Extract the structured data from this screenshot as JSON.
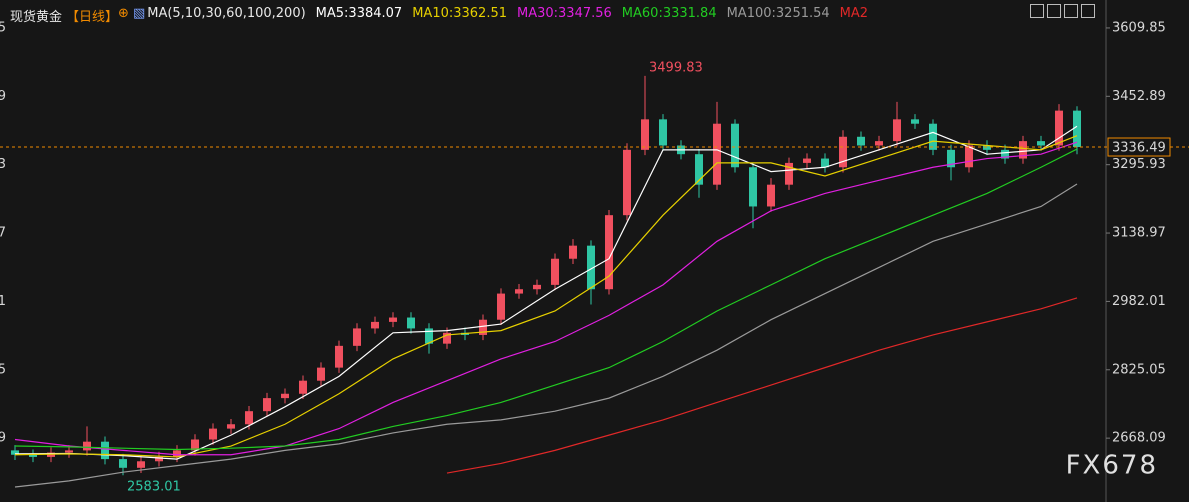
{
  "chart_data": {
    "type": "candlestick",
    "title": "现货黄金",
    "period": "【日线】",
    "indicator": "MA(5,10,30,60,100,200)",
    "watermark": "FX678",
    "up_color": "#f0505f",
    "down_color": "#2fc6a4",
    "open": [
      2640,
      2630,
      2625,
      2635,
      2640,
      2660,
      2620,
      2600,
      2615,
      2625,
      2640,
      2665,
      2690,
      2700,
      2730,
      2760,
      2770,
      2800,
      2830,
      2880,
      2920,
      2935,
      2945,
      2920,
      2885,
      2910,
      2905,
      2940,
      3000,
      3010,
      3020,
      3080,
      3110,
      3010,
      3180,
      3330,
      3400,
      3340,
      3320,
      3250,
      3390,
      3290,
      3200,
      3250,
      3300,
      3310,
      3290,
      3360,
      3340,
      3350,
      3400,
      3390,
      3330,
      3290,
      3340,
      3330,
      3310,
      3350,
      3340,
      3420
    ],
    "high": [
      2652,
      2642,
      2647,
      2652,
      2695,
      2672,
      2632,
      2627,
      2637,
      2652,
      2677,
      2702,
      2712,
      2742,
      2772,
      2782,
      2812,
      2842,
      2892,
      2932,
      2947,
      2957,
      2957,
      2932,
      2922,
      2922,
      2952,
      3012,
      3022,
      3032,
      3092,
      3125,
      3122,
      3192,
      3345,
      3499.83,
      3412,
      3352,
      3332,
      3440,
      3400,
      3300,
      3265,
      3312,
      3322,
      3322,
      3375,
      3372,
      3362,
      3440,
      3412,
      3400,
      3342,
      3352,
      3352,
      3342,
      3362,
      3362,
      3435,
      3430
    ],
    "low": [
      2618,
      2613,
      2613,
      2623,
      2628,
      2608,
      2583.01,
      2588,
      2603,
      2613,
      2628,
      2653,
      2678,
      2688,
      2718,
      2748,
      2758,
      2788,
      2818,
      2868,
      2908,
      2923,
      2908,
      2862,
      2873,
      2893,
      2893,
      2928,
      2988,
      2998,
      3008,
      3068,
      2975,
      2998,
      3168,
      3318,
      3328,
      3308,
      3220,
      3238,
      3278,
      3150,
      3188,
      3238,
      3288,
      3278,
      3278,
      3328,
      3328,
      3338,
      3378,
      3318,
      3260,
      3278,
      3318,
      3298,
      3298,
      3328,
      3328,
      3320
    ],
    "close": [
      2630,
      2625,
      2635,
      2640,
      2660,
      2620,
      2600,
      2615,
      2625,
      2640,
      2665,
      2690,
      2700,
      2730,
      2760,
      2770,
      2800,
      2830,
      2880,
      2920,
      2935,
      2945,
      2920,
      2885,
      2910,
      2905,
      2940,
      3000,
      3010,
      3020,
      3080,
      3110,
      3010,
      3180,
      3330,
      3400,
      3340,
      3320,
      3250,
      3390,
      3290,
      3200,
      3250,
      3300,
      3310,
      3290,
      3360,
      3340,
      3350,
      3400,
      3390,
      3330,
      3290,
      3340,
      3330,
      3310,
      3350,
      3340,
      3420,
      3336.49
    ],
    "series": [
      {
        "name": "MA5:3384.07",
        "color": "#ffffff",
        "x": [
          0,
          3,
          6,
          9,
          12,
          15,
          18,
          21,
          24,
          27,
          30,
          33,
          36,
          39,
          42,
          45,
          48,
          51,
          54,
          57,
          59
        ],
        "values": [
          2632,
          2633,
          2628,
          2620,
          2675,
          2740,
          2810,
          2910,
          2915,
          2930,
          3010,
          3080,
          3330,
          3330,
          3280,
          3290,
          3330,
          3370,
          3320,
          3330,
          3384.07
        ]
      },
      {
        "name": "MA10:3362.51",
        "color": "#e6d000",
        "x": [
          0,
          3,
          6,
          9,
          12,
          15,
          18,
          21,
          24,
          27,
          30,
          33,
          36,
          39,
          42,
          45,
          48,
          51,
          54,
          57,
          59
        ],
        "values": [
          2630,
          2632,
          2630,
          2625,
          2650,
          2700,
          2770,
          2850,
          2905,
          2915,
          2960,
          3040,
          3180,
          3300,
          3300,
          3270,
          3310,
          3350,
          3340,
          3330,
          3362.51
        ]
      },
      {
        "name": "MA30:3347.56",
        "color": "#e020e0",
        "x": [
          0,
          3,
          6,
          9,
          12,
          15,
          18,
          21,
          24,
          27,
          30,
          33,
          36,
          39,
          42,
          45,
          48,
          51,
          54,
          57,
          59
        ],
        "values": [
          2665,
          2650,
          2640,
          2630,
          2630,
          2650,
          2690,
          2750,
          2800,
          2850,
          2890,
          2950,
          3020,
          3120,
          3190,
          3230,
          3260,
          3290,
          3310,
          3320,
          3347.56
        ]
      },
      {
        "name": "MA60:3331.84",
        "color": "#22cc22",
        "x": [
          0,
          3,
          6,
          9,
          12,
          15,
          18,
          21,
          24,
          27,
          30,
          33,
          36,
          39,
          42,
          45,
          48,
          51,
          54,
          57,
          59
        ],
        "values": [
          2650,
          2648,
          2645,
          2642,
          2645,
          2650,
          2665,
          2695,
          2720,
          2750,
          2790,
          2830,
          2890,
          2960,
          3020,
          3080,
          3130,
          3180,
          3230,
          3290,
          3331.84
        ]
      },
      {
        "name": "MA100:3251.54",
        "color": "#9a9a9a",
        "x": [
          0,
          3,
          6,
          9,
          12,
          15,
          18,
          21,
          24,
          27,
          30,
          33,
          36,
          39,
          42,
          45,
          48,
          51,
          54,
          57,
          59
        ],
        "values": [
          2556,
          2570,
          2590,
          2605,
          2620,
          2640,
          2655,
          2680,
          2700,
          2710,
          2730,
          2760,
          2810,
          2870,
          2940,
          3000,
          3060,
          3120,
          3160,
          3200,
          3251.54
        ]
      },
      {
        "name": "MA2",
        "color": "#e02828",
        "x": [
          24,
          27,
          30,
          33,
          36,
          39,
          42,
          45,
          48,
          51,
          54,
          57,
          59
        ],
        "values": [
          2588,
          2610,
          2640,
          2675,
          2710,
          2750,
          2790,
          2830,
          2870,
          2905,
          2935,
          2965,
          2990
        ]
      }
    ],
    "ylim": [
      2521.5,
      3674
    ],
    "yticks": [
      3609.85,
      3452.89,
      3295.93,
      3138.97,
      2982.01,
      2825.05,
      2668.09
    ],
    "last_color": "#f08a00"
  }
}
